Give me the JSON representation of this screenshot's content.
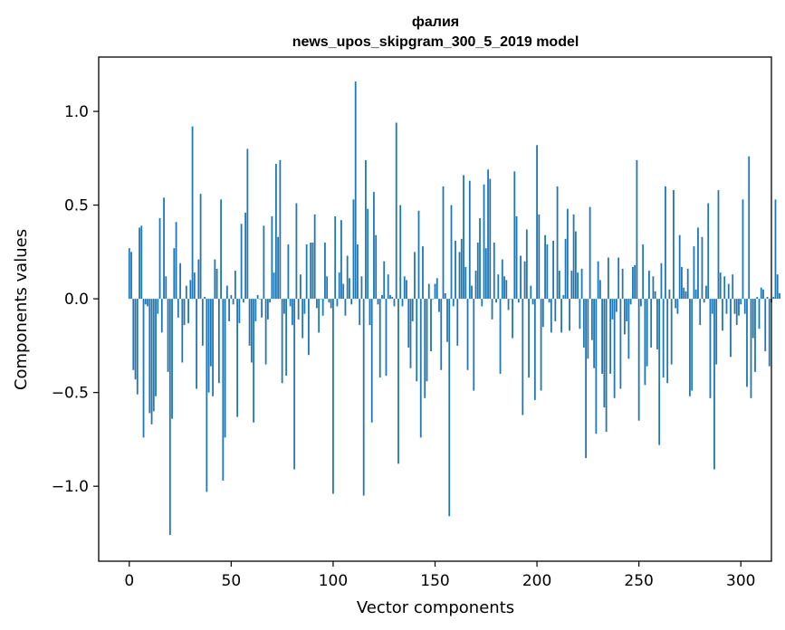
{
  "chart_data": {
    "type": "bar",
    "title": "фалия",
    "subtitle": "news_upos_skipgram_300_5_2019 model",
    "xlabel": "Vector components",
    "ylabel": "Components values",
    "xlim": [
      -15,
      315
    ],
    "ylim": [
      -1.4,
      1.29
    ],
    "xticks": [
      0,
      50,
      100,
      150,
      200,
      250,
      300
    ],
    "yticks": [
      -1.0,
      -0.5,
      0.0,
      0.5,
      1.0
    ],
    "ytick_labels": [
      "−1.0",
      "−0.5",
      "0.0",
      "0.5",
      "1.0"
    ],
    "bar_color": "#1f77b4",
    "grid": false,
    "values": [
      0.27,
      0.25,
      -0.38,
      -0.43,
      -0.51,
      0.38,
      0.39,
      -0.74,
      -0.03,
      -0.04,
      -0.61,
      -0.67,
      -0.6,
      -0.52,
      -0.08,
      0.43,
      -0.18,
      0.54,
      0.12,
      -0.39,
      -1.26,
      -0.64,
      0.27,
      0.41,
      -0.1,
      0.19,
      -0.34,
      -0.14,
      0.07,
      -0.13,
      0.1,
      0.92,
      0.14,
      -0.48,
      0.21,
      0.56,
      -0.25,
      0.01,
      -1.03,
      -0.5,
      -0.36,
      -0.52,
      0.21,
      0.16,
      -0.45,
      0.53,
      -0.97,
      -0.74,
      0.07,
      -0.12,
      0.02,
      -0.03,
      0.15,
      -0.63,
      -0.13,
      0.4,
      -0.02,
      0.46,
      0.8,
      -0.25,
      -0.34,
      -0.66,
      -0.12,
      0.02,
      0.0,
      -0.1,
      0.39,
      -0.35,
      -0.11,
      -0.02,
      0.44,
      0.14,
      0.72,
      0.33,
      0.74,
      -0.45,
      -0.08,
      -0.41,
      0.29,
      -0.04,
      -0.14,
      -0.91,
      0.51,
      -0.11,
      0.13,
      -0.21,
      -0.08,
      0.29,
      -0.3,
      0.3,
      0.3,
      0.45,
      -0.05,
      -0.18,
      0.0,
      -0.09,
      0.3,
      0.12,
      -0.02,
      -0.05,
      -1.04,
      0.44,
      -0.04,
      0.14,
      0.42,
      0.08,
      -0.09,
      0.23,
      0.11,
      -0.03,
      0.53,
      1.16,
      0.29,
      -0.14,
      0.12,
      -1.05,
      0.74,
      0.48,
      -0.14,
      -0.66,
      0.57,
      0.34,
      -0.03,
      -0.42,
      0.02,
      0.2,
      -0.41,
      0.13,
      0.02,
      0.01,
      -0.04,
      0.94,
      -0.88,
      0.5,
      -0.04,
      0.12,
      0.1,
      -0.26,
      -0.37,
      -0.12,
      0.25,
      -0.44,
      0.47,
      -0.74,
      0.28,
      -0.53,
      -0.44,
      0.08,
      -0.28,
      0.0,
      0.08,
      0.11,
      -0.07,
      -0.38,
      0.6,
      0.03,
      -0.23,
      -1.16,
      0.5,
      -0.04,
      0.31,
      -0.25,
      0.25,
      0.32,
      0.66,
      0.17,
      -0.38,
      0.63,
      0.07,
      -0.49,
      0.15,
      0.3,
      0.43,
      -0.04,
      0.61,
      0.27,
      0.69,
      0.64,
      -0.11,
      0.3,
      -0.02,
      0.13,
      -0.4,
      0.21,
      0.12,
      0.1,
      -0.06,
      0.0,
      -0.21,
      0.68,
      0.44,
      -0.02,
      0.23,
      -0.62,
      0.2,
      0.37,
      -0.42,
      0.07,
      -0.03,
      -0.54,
      0.82,
      0.45,
      -0.49,
      -0.15,
      0.34,
      0.29,
      -0.02,
      -0.18,
      0.31,
      -0.12,
      0.6,
      0.15,
      -0.18,
      0.02,
      0.32,
      0.48,
      -0.17,
      0.15,
      0.45,
      0.36,
      0.14,
      -0.16,
      0.16,
      -0.26,
      -0.85,
      -0.32,
      0.49,
      -0.22,
      -0.37,
      -0.72,
      0.2,
      0.1,
      -0.4,
      -0.58,
      -0.71,
      0.22,
      -0.4,
      -0.11,
      -0.53,
      -0.07,
      0.22,
      -0.48,
      0.16,
      -0.19,
      -0.12,
      -0.32,
      -0.03,
      0.17,
      0.18,
      0.74,
      -0.65,
      -0.04,
      0.29,
      -0.46,
      -0.36,
      0.15,
      -0.26,
      0.12,
      0.04,
      -0.27,
      -0.78,
      0.19,
      -0.42,
      0.6,
      -0.45,
      0.05,
      -0.35,
      0.58,
      -0.05,
      -0.08,
      0.34,
      0.17,
      0.06,
      0.04,
      0.16,
      -0.52,
      -0.49,
      0.28,
      0.05,
      0.38,
      -0.14,
      0.33,
      -0.02,
      0.07,
      0.51,
      -0.53,
      -0.08,
      -0.91,
      -0.35,
      0.58,
      0.14,
      -0.17,
      0.12,
      -0.08,
      0.08,
      -0.31,
      0.13,
      -0.08,
      -0.14,
      -0.09,
      -0.03,
      0.53,
      -0.08,
      -0.47,
      0.76,
      -0.53,
      -0.21,
      -0.39,
      0.01,
      -0.16,
      0.06,
      0.05,
      -0.28,
      0.01,
      -0.36,
      -0.02,
      0.01,
      0.53,
      0.13,
      0.03
    ]
  }
}
